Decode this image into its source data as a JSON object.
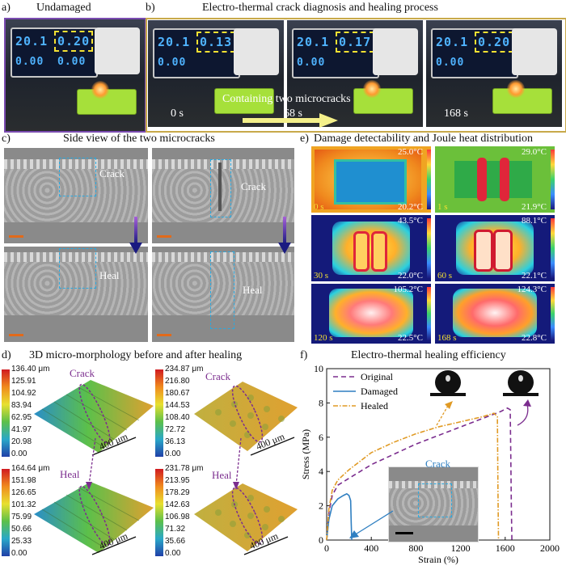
{
  "panel_a": {
    "letter": "a)",
    "title": "Undamaged",
    "display_top_left": "20.1",
    "display_top_right": "0.20",
    "display_bottom_left": "0.00",
    "display_bottom_right": "0.00"
  },
  "panel_b": {
    "letter": "b)",
    "title": "Electro-thermal crack diagnosis and healing process",
    "frames": [
      {
        "time": "0 s",
        "display_left": "20.1",
        "display_right": "0.13"
      },
      {
        "time": "68 s",
        "display_left": "20.1",
        "display_right": "0.17"
      },
      {
        "time": "168 s",
        "display_left": "20.1",
        "display_right": "0.20"
      }
    ],
    "annotation": "Containing two microcracks",
    "display_bottom": "0.00"
  },
  "panel_c": {
    "letter": "c)",
    "title": "Side view of the two microcracks",
    "crack_label": "Crack",
    "heal_label": "Heal"
  },
  "panel_e": {
    "letter": "e)",
    "title": "Damage detectability and Joule heat distribution",
    "frames": [
      {
        "time": "0 s",
        "tmax": "25.0°C",
        "tmin": "20.2°C"
      },
      {
        "time": "1 s",
        "tmax": "29.0°C",
        "tmin": "21.9°C"
      },
      {
        "time": "30 s",
        "tmax": "43.5°C",
        "tmin": "22.0°C"
      },
      {
        "time": "60 s",
        "tmax": "88.1°C",
        "tmin": "22.1°C"
      },
      {
        "time": "120 s",
        "tmax": "105.2°C",
        "tmin": "22.5°C"
      },
      {
        "time": "168 s",
        "tmax": "124.3°C",
        "tmin": "22.8°C"
      }
    ]
  },
  "panel_d": {
    "letter": "d)",
    "title": "3D micro-morphology before and after healing",
    "crack_label": "Crack",
    "heal_label": "Heal",
    "scale": "400 μm",
    "colorbars": [
      {
        "ticks": [
          "136.40 μm",
          "125.91",
          "104.92",
          "83.94",
          "62.95",
          "41.97",
          "20.98",
          "0.00"
        ]
      },
      {
        "ticks": [
          "234.87 μm",
          "216.80",
          "180.67",
          "144.53",
          "108.40",
          "72.72",
          "36.13",
          "0.00"
        ]
      },
      {
        "ticks": [
          "164.64 μm",
          "151.98",
          "126.65",
          "101.32",
          "75.99",
          "50.66",
          "25.33",
          "0.00"
        ]
      },
      {
        "ticks": [
          "231.78 μm",
          "213.95",
          "178.29",
          "142.63",
          "106.98",
          "71.32",
          "35.66",
          "0.00"
        ]
      }
    ]
  },
  "panel_f": {
    "letter": "f)",
    "title": "Electro-thermal healing efficiency",
    "inset_label": "Crack"
  },
  "chart_data": {
    "type": "line",
    "xlabel": "Strain (%)",
    "ylabel": "Stress (MPa)",
    "xlim": [
      0,
      2000
    ],
    "ylim": [
      0,
      10
    ],
    "xticks": [
      0,
      400,
      800,
      1200,
      1600,
      2000
    ],
    "yticks": [
      0,
      2,
      4,
      6,
      8,
      10
    ],
    "legend": "top-left",
    "series": [
      {
        "name": "Original",
        "color": "#7b2d8e",
        "dash": "dashed",
        "x": [
          0,
          20,
          50,
          100,
          200,
          400,
          600,
          800,
          1000,
          1200,
          1400,
          1560,
          1620,
          1645,
          1650,
          1655,
          1660
        ],
        "y": [
          0,
          1.6,
          2.6,
          3.2,
          3.6,
          4.4,
          5.0,
          5.6,
          6.1,
          6.6,
          7.1,
          7.5,
          7.7,
          7.6,
          5.0,
          2.0,
          0
        ]
      },
      {
        "name": "Damaged",
        "color": "#2f7fc1",
        "dash": "solid",
        "x": [
          0,
          20,
          50,
          100,
          150,
          180,
          200,
          215,
          220,
          225
        ],
        "y": [
          0,
          1.2,
          2.0,
          2.4,
          2.6,
          2.7,
          2.6,
          2.3,
          1.0,
          0
        ]
      },
      {
        "name": "Healed",
        "color": "#e09a24",
        "dash": "dashdot",
        "x": [
          0,
          20,
          50,
          100,
          200,
          400,
          600,
          800,
          1000,
          1200,
          1400,
          1500,
          1530,
          1535,
          1540
        ],
        "y": [
          0,
          1.8,
          2.9,
          3.5,
          4.1,
          5.1,
          5.7,
          6.2,
          6.6,
          6.9,
          7.2,
          7.4,
          7.2,
          3.0,
          0
        ]
      }
    ]
  }
}
